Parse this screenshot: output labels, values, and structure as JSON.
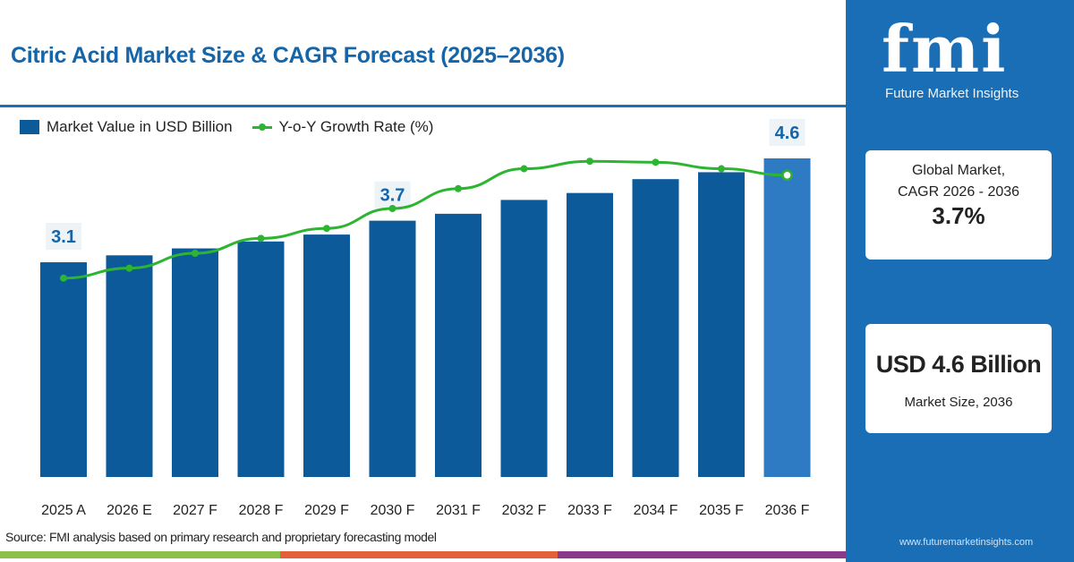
{
  "title": "Citric Acid Market Size & CAGR Forecast (2025–2036)",
  "legend": {
    "bar": "Market Value in USD Billion",
    "line": "Y-o-Y Growth Rate (%)"
  },
  "source": "Source: FMI analysis based on primary research and proprietary forecasting model",
  "brand": {
    "logo": "fmi",
    "name": "Future Market Insights",
    "url": "www.futuremarketinsights.com"
  },
  "cards": {
    "cagr": {
      "label1": "Global Market,",
      "label2": "CAGR 2026 - 2036",
      "value": "3.7%"
    },
    "size": {
      "value": "USD 4.6 Billion",
      "label": "Market Size, 2036"
    }
  },
  "colors": {
    "bar": "#0d5a9a",
    "bar_highlight": "#2e7bc4",
    "line": "#2db532",
    "panel": "#1a6eb5"
  },
  "chart_data": {
    "type": "bar",
    "title": "Citric Acid Market Size & CAGR Forecast (2025–2036)",
    "categories": [
      "2025 A",
      "2026 E",
      "2027 F",
      "2028 F",
      "2029 F",
      "2030 F",
      "2031 F",
      "2032 F",
      "2033 F",
      "2034 F",
      "2035 F",
      "2036 F"
    ],
    "series": [
      {
        "name": "Market Value in USD Billion",
        "type": "bar",
        "values": [
          3.1,
          3.2,
          3.3,
          3.4,
          3.5,
          3.7,
          3.8,
          4.0,
          4.1,
          4.3,
          4.4,
          4.6
        ]
      },
      {
        "name": "Y-o-Y Growth Rate (%)",
        "type": "line",
        "values": [
          3.0,
          3.2,
          3.5,
          3.8,
          4.0,
          4.4,
          4.8,
          5.2,
          5.35,
          5.33,
          5.2,
          5.07
        ]
      }
    ],
    "data_labels": {
      "0": "3.1",
      "5": "3.7",
      "11": "4.6"
    },
    "ylim": [
      0,
      6.9
    ],
    "line_ylim": [
      -1,
      6.2
    ],
    "legend": "top-left",
    "grid": false
  }
}
